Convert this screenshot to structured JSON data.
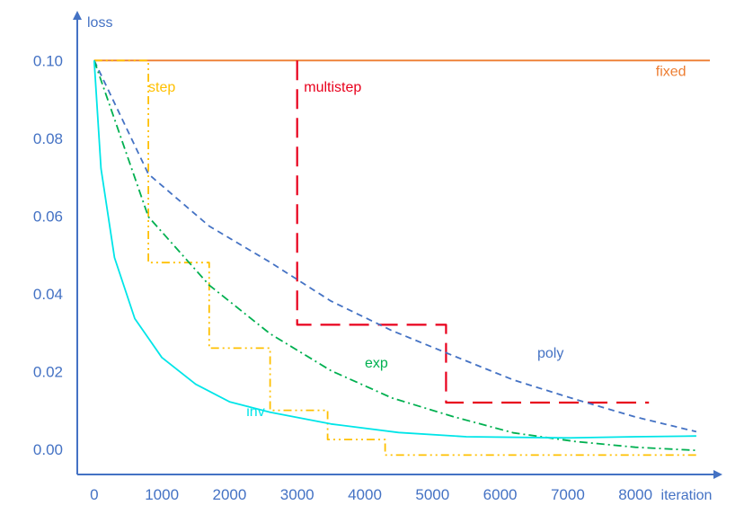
{
  "chart_data": {
    "type": "line",
    "xlabel": "iteration",
    "ylabel": "loss",
    "xlim": [
      -250,
      9100
    ],
    "ylim": [
      -0.0065,
      0.11
    ],
    "x_ticks": [
      "0",
      "1000",
      "2000",
      "3000",
      "4000",
      "5000",
      "6000",
      "7000",
      "8000"
    ],
    "y_ticks": [
      "0.00",
      "0.02",
      "0.04",
      "0.06",
      "0.08",
      "0.10"
    ],
    "axis_color": "#4472c4",
    "tick_label_color": "#4472c4",
    "series": [
      {
        "name": "fixed",
        "color": "#ed7d31",
        "style": "solid",
        "label_at": [
          8300,
          0.096
        ],
        "points": [
          [
            0,
            0.1
          ],
          [
            9100,
            0.1
          ]
        ]
      },
      {
        "name": "step",
        "color": "#ffc000",
        "style": "dashdotdot",
        "label_at": [
          800,
          0.092
        ],
        "points": [
          [
            0,
            0.1
          ],
          [
            800,
            0.1
          ],
          [
            800,
            0.048
          ],
          [
            1700,
            0.048
          ],
          [
            1700,
            0.026
          ],
          [
            2600,
            0.026
          ],
          [
            2600,
            0.01
          ],
          [
            3450,
            0.01
          ],
          [
            3450,
            0.0025
          ],
          [
            4300,
            0.0025
          ],
          [
            4300,
            -0.0015
          ],
          [
            8900,
            -0.0015
          ]
        ]
      },
      {
        "name": "multistep",
        "color": "#e8001c",
        "style": "longdash",
        "label_at": [
          3100,
          0.092
        ],
        "points": [
          [
            3000,
            0.1
          ],
          [
            3000,
            0.032
          ],
          [
            5200,
            0.032
          ],
          [
            5200,
            0.012
          ],
          [
            8200,
            0.012
          ]
        ]
      },
      {
        "name": "poly",
        "color": "#4472c4",
        "style": "dash",
        "label_at": [
          6550,
          0.0235
        ],
        "points": [
          [
            0,
            0.1
          ],
          [
            800,
            0.0708
          ],
          [
            1700,
            0.0574
          ],
          [
            2600,
            0.0481
          ],
          [
            3500,
            0.0381
          ],
          [
            4400,
            0.0305
          ],
          [
            5300,
            0.0241
          ],
          [
            6200,
            0.0178
          ],
          [
            7100,
            0.0129
          ],
          [
            8000,
            0.0083
          ],
          [
            8900,
            0.0045
          ]
        ]
      },
      {
        "name": "exp",
        "color": "#00b050",
        "style": "dashdot",
        "label_at": [
          4000,
          0.021
        ],
        "points": [
          [
            0,
            0.1
          ],
          [
            800,
            0.0598
          ],
          [
            1700,
            0.0422
          ],
          [
            2600,
            0.0297
          ],
          [
            3500,
            0.0202
          ],
          [
            4400,
            0.0132
          ],
          [
            5300,
            0.0084
          ],
          [
            6200,
            0.0042
          ],
          [
            7100,
            0.002
          ],
          [
            8000,
            0.0005
          ],
          [
            8900,
            -0.0003
          ]
        ]
      },
      {
        "name": "inv",
        "color": "#00e5e8",
        "style": "solid",
        "label_at": [
          2250,
          0.0085
        ],
        "points": [
          [
            0,
            0.1
          ],
          [
            100,
            0.0722
          ],
          [
            300,
            0.0493
          ],
          [
            600,
            0.0336
          ],
          [
            1000,
            0.0236
          ],
          [
            1500,
            0.0167
          ],
          [
            2000,
            0.0122
          ],
          [
            2600,
            0.0095
          ],
          [
            3500,
            0.0065
          ],
          [
            4500,
            0.0043
          ],
          [
            5500,
            0.0032
          ],
          [
            7000,
            0.0029
          ],
          [
            8000,
            0.0032
          ],
          [
            8900,
            0.0034
          ]
        ]
      }
    ]
  }
}
